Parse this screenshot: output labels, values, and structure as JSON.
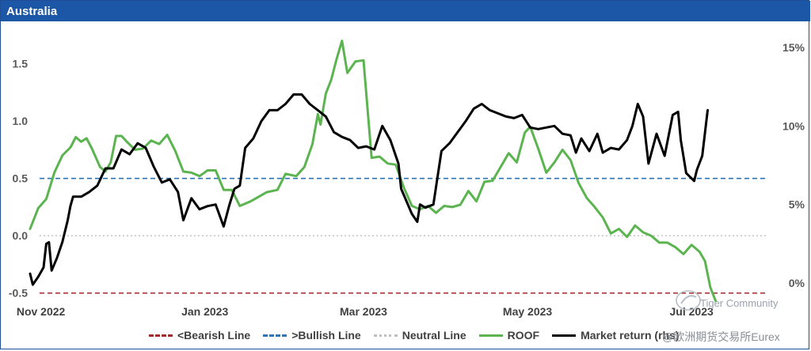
{
  "title": "Australia",
  "watermark": {
    "line1": "Tiger Community",
    "line2": "@欧洲期货交易所Eurex"
  },
  "chart_data": {
    "type": "line",
    "title": "Australia",
    "left_axis": {
      "ylim": [
        -0.55,
        1.78
      ],
      "ticks": [
        -0.5,
        0.0,
        0.5,
        1.0,
        1.5
      ],
      "tick_labels": [
        "-0.5",
        "0.0",
        "0.5",
        "1.0",
        "1.5"
      ]
    },
    "right_axis": {
      "ylim": [
        -1.0,
        16.0
      ],
      "ticks": [
        0,
        5,
        10,
        15
      ],
      "tick_labels": [
        "0%",
        "5%",
        "10%",
        "15%"
      ]
    },
    "x_range": [
      "2022-10-28",
      "2023-07-31"
    ],
    "x_ticks": [
      {
        "date": "2022-11-01",
        "label": "Nov 2022"
      },
      {
        "date": "2023-01-01",
        "label": "Jan 2023"
      },
      {
        "date": "2023-03-01",
        "label": "Mar 2023"
      },
      {
        "date": "2023-05-01",
        "label": "May 2023"
      },
      {
        "date": "2023-07-01",
        "label": "Jul 2023"
      }
    ],
    "reference_lines": [
      {
        "name": "<Bearish Line",
        "value": -0.5,
        "color": "#a52a2a",
        "style": "dashed"
      },
      {
        "name": ">Bullish Line",
        "value": 0.5,
        "color": "#2e75b6",
        "style": "dashed"
      },
      {
        "name": "Neutral Line",
        "value": 0.0,
        "color": "#bfbfbf",
        "style": "dotted"
      }
    ],
    "series": [
      {
        "name": "ROOF",
        "axis": "left",
        "color": "#5bb450",
        "points": [
          [
            "2022-10-28",
            0.06
          ],
          [
            "2022-10-31",
            0.24
          ],
          [
            "2022-11-03",
            0.32
          ],
          [
            "2022-11-06",
            0.55
          ],
          [
            "2022-11-09",
            0.7
          ],
          [
            "2022-11-12",
            0.77
          ],
          [
            "2022-11-14",
            0.86
          ],
          [
            "2022-11-16",
            0.82
          ],
          [
            "2022-11-18",
            0.85
          ],
          [
            "2022-11-20",
            0.76
          ],
          [
            "2022-11-23",
            0.6
          ],
          [
            "2022-11-25",
            0.56
          ],
          [
            "2022-11-27",
            0.64
          ],
          [
            "2022-11-29",
            0.87
          ],
          [
            "2022-12-01",
            0.87
          ],
          [
            "2022-12-03",
            0.82
          ],
          [
            "2022-12-06",
            0.75
          ],
          [
            "2022-12-09",
            0.76
          ],
          [
            "2022-12-12",
            0.83
          ],
          [
            "2022-12-15",
            0.8
          ],
          [
            "2022-12-18",
            0.88
          ],
          [
            "2022-12-21",
            0.74
          ],
          [
            "2022-12-24",
            0.56
          ],
          [
            "2022-12-27",
            0.55
          ],
          [
            "2022-12-30",
            0.52
          ],
          [
            "2023-01-02",
            0.57
          ],
          [
            "2023-01-05",
            0.57
          ],
          [
            "2023-01-08",
            0.4
          ],
          [
            "2023-01-11",
            0.4
          ],
          [
            "2023-01-14",
            0.26
          ],
          [
            "2023-01-18",
            0.3
          ],
          [
            "2023-01-21",
            0.34
          ],
          [
            "2023-01-24",
            0.38
          ],
          [
            "2023-01-28",
            0.4
          ],
          [
            "2023-01-31",
            0.54
          ],
          [
            "2023-02-04",
            0.52
          ],
          [
            "2023-02-07",
            0.6
          ],
          [
            "2023-02-10",
            0.8
          ],
          [
            "2023-02-12",
            1.06
          ],
          [
            "2023-02-13",
            0.97
          ],
          [
            "2023-02-15",
            1.24
          ],
          [
            "2023-02-17",
            1.36
          ],
          [
            "2023-02-19",
            1.54
          ],
          [
            "2023-02-21",
            1.7
          ],
          [
            "2023-02-23",
            1.42
          ],
          [
            "2023-02-26",
            1.52
          ],
          [
            "2023-03-01",
            1.53
          ],
          [
            "2023-03-04",
            0.68
          ],
          [
            "2023-03-07",
            0.69
          ],
          [
            "2023-03-10",
            0.63
          ],
          [
            "2023-03-13",
            0.62
          ],
          [
            "2023-03-16",
            0.42
          ],
          [
            "2023-03-19",
            0.26
          ],
          [
            "2023-03-22",
            0.23
          ],
          [
            "2023-03-25",
            0.26
          ],
          [
            "2023-03-28",
            0.2
          ],
          [
            "2023-03-31",
            0.26
          ],
          [
            "2023-04-03",
            0.25
          ],
          [
            "2023-04-06",
            0.27
          ],
          [
            "2023-04-09",
            0.39
          ],
          [
            "2023-04-12",
            0.3
          ],
          [
            "2023-04-15",
            0.47
          ],
          [
            "2023-04-18",
            0.48
          ],
          [
            "2023-04-21",
            0.6
          ],
          [
            "2023-04-24",
            0.72
          ],
          [
            "2023-04-27",
            0.64
          ],
          [
            "2023-04-30",
            0.9
          ],
          [
            "2023-05-02",
            0.95
          ],
          [
            "2023-05-05",
            0.76
          ],
          [
            "2023-05-08",
            0.55
          ],
          [
            "2023-05-11",
            0.64
          ],
          [
            "2023-05-14",
            0.75
          ],
          [
            "2023-05-17",
            0.66
          ],
          [
            "2023-05-20",
            0.46
          ],
          [
            "2023-05-23",
            0.33
          ],
          [
            "2023-05-26",
            0.25
          ],
          [
            "2023-05-29",
            0.16
          ],
          [
            "2023-06-01",
            0.02
          ],
          [
            "2023-06-04",
            0.06
          ],
          [
            "2023-06-07",
            -0.01
          ],
          [
            "2023-06-10",
            0.09
          ],
          [
            "2023-06-13",
            0.03
          ],
          [
            "2023-06-16",
            0.0
          ],
          [
            "2023-06-19",
            -0.06
          ],
          [
            "2023-06-22",
            -0.06
          ],
          [
            "2023-06-25",
            -0.1
          ],
          [
            "2023-06-28",
            -0.16
          ],
          [
            "2023-07-01",
            -0.08
          ],
          [
            "2023-07-04",
            -0.14
          ],
          [
            "2023-07-06",
            -0.22
          ],
          [
            "2023-07-08",
            -0.45
          ],
          [
            "2023-07-10",
            -0.57
          ]
        ]
      },
      {
        "name": "Market return (rhs)",
        "axis": "right",
        "color": "#000000",
        "points": [
          [
            "2022-10-28",
            0.6
          ],
          [
            "2022-10-29",
            -0.1
          ],
          [
            "2022-10-31",
            0.4
          ],
          [
            "2022-11-02",
            1.0
          ],
          [
            "2022-11-03",
            2.5
          ],
          [
            "2022-11-04",
            2.6
          ],
          [
            "2022-11-05",
            0.8
          ],
          [
            "2022-11-07",
            1.6
          ],
          [
            "2022-11-09",
            2.6
          ],
          [
            "2022-11-11",
            4.0
          ],
          [
            "2022-11-12",
            4.9
          ],
          [
            "2022-11-13",
            5.5
          ],
          [
            "2022-11-16",
            5.5
          ],
          [
            "2022-11-19",
            5.8
          ],
          [
            "2022-11-22",
            6.2
          ],
          [
            "2022-11-25",
            7.3
          ],
          [
            "2022-11-28",
            7.3
          ],
          [
            "2022-12-01",
            8.5
          ],
          [
            "2022-12-04",
            8.2
          ],
          [
            "2022-12-07",
            8.9
          ],
          [
            "2022-12-10",
            8.6
          ],
          [
            "2022-12-13",
            7.4
          ],
          [
            "2022-12-16",
            6.4
          ],
          [
            "2022-12-19",
            6.6
          ],
          [
            "2022-12-22",
            5.8
          ],
          [
            "2022-12-24",
            4.0
          ],
          [
            "2022-12-27",
            5.4
          ],
          [
            "2022-12-30",
            4.7
          ],
          [
            "2023-01-02",
            4.9
          ],
          [
            "2023-01-05",
            5.0
          ],
          [
            "2023-01-08",
            3.6
          ],
          [
            "2023-01-10",
            4.9
          ],
          [
            "2023-01-12",
            6.0
          ],
          [
            "2023-01-14",
            6.2
          ],
          [
            "2023-01-16",
            8.6
          ],
          [
            "2023-01-19",
            9.2
          ],
          [
            "2023-01-22",
            10.3
          ],
          [
            "2023-01-25",
            11.0
          ],
          [
            "2023-01-28",
            11.0
          ],
          [
            "2023-01-31",
            11.4
          ],
          [
            "2023-02-03",
            12.0
          ],
          [
            "2023-02-06",
            12.0
          ],
          [
            "2023-02-09",
            11.4
          ],
          [
            "2023-02-12",
            11.0
          ],
          [
            "2023-02-15",
            10.6
          ],
          [
            "2023-02-18",
            9.6
          ],
          [
            "2023-02-21",
            9.3
          ],
          [
            "2023-02-24",
            9.1
          ],
          [
            "2023-02-27",
            8.6
          ],
          [
            "2023-03-02",
            8.7
          ],
          [
            "2023-03-05",
            8.5
          ],
          [
            "2023-03-08",
            10.0
          ],
          [
            "2023-03-11",
            9.1
          ],
          [
            "2023-03-14",
            7.6
          ],
          [
            "2023-03-15",
            6.0
          ],
          [
            "2023-03-17",
            5.2
          ],
          [
            "2023-03-19",
            4.4
          ],
          [
            "2023-03-21",
            3.9
          ],
          [
            "2023-03-22",
            5.0
          ],
          [
            "2023-03-24",
            4.8
          ],
          [
            "2023-03-27",
            5.0
          ],
          [
            "2023-03-30",
            8.4
          ],
          [
            "2023-04-02",
            8.9
          ],
          [
            "2023-04-05",
            9.6
          ],
          [
            "2023-04-08",
            10.3
          ],
          [
            "2023-04-11",
            11.1
          ],
          [
            "2023-04-14",
            11.4
          ],
          [
            "2023-04-17",
            11.0
          ],
          [
            "2023-04-20",
            10.8
          ],
          [
            "2023-04-23",
            10.6
          ],
          [
            "2023-04-26",
            10.5
          ],
          [
            "2023-04-29",
            10.7
          ],
          [
            "2023-05-02",
            9.9
          ],
          [
            "2023-05-05",
            9.8
          ],
          [
            "2023-05-08",
            9.9
          ],
          [
            "2023-05-11",
            10.0
          ],
          [
            "2023-05-14",
            9.5
          ],
          [
            "2023-05-17",
            9.4
          ],
          [
            "2023-05-19",
            8.3
          ],
          [
            "2023-05-21",
            9.2
          ],
          [
            "2023-05-24",
            8.4
          ],
          [
            "2023-05-27",
            9.5
          ],
          [
            "2023-05-29",
            8.3
          ],
          [
            "2023-06-01",
            8.6
          ],
          [
            "2023-06-04",
            8.5
          ],
          [
            "2023-06-07",
            9.1
          ],
          [
            "2023-06-09",
            10.0
          ],
          [
            "2023-06-11",
            11.4
          ],
          [
            "2023-06-13",
            10.6
          ],
          [
            "2023-06-15",
            7.6
          ],
          [
            "2023-06-18",
            9.5
          ],
          [
            "2023-06-21",
            8.1
          ],
          [
            "2023-06-24",
            10.7
          ],
          [
            "2023-06-26",
            10.9
          ],
          [
            "2023-06-27",
            9.1
          ],
          [
            "2023-06-29",
            7.0
          ],
          [
            "2023-07-02",
            6.5
          ],
          [
            "2023-07-03",
            7.2
          ],
          [
            "2023-07-05",
            8.1
          ],
          [
            "2023-07-07",
            11.0
          ]
        ]
      }
    ]
  },
  "legend": [
    {
      "label": "<Bearish Line",
      "color": "#a52a2a",
      "style": "dashed"
    },
    {
      "label": ">Bullish Line",
      "color": "#2e75b6",
      "style": "dashed"
    },
    {
      "label": "Neutral Line",
      "color": "#bfbfbf",
      "style": "dotted"
    },
    {
      "label": "ROOF",
      "color": "#5bb450",
      "style": "solid"
    },
    {
      "label": "Market return (rhs)",
      "color": "#000000",
      "style": "solid"
    }
  ]
}
